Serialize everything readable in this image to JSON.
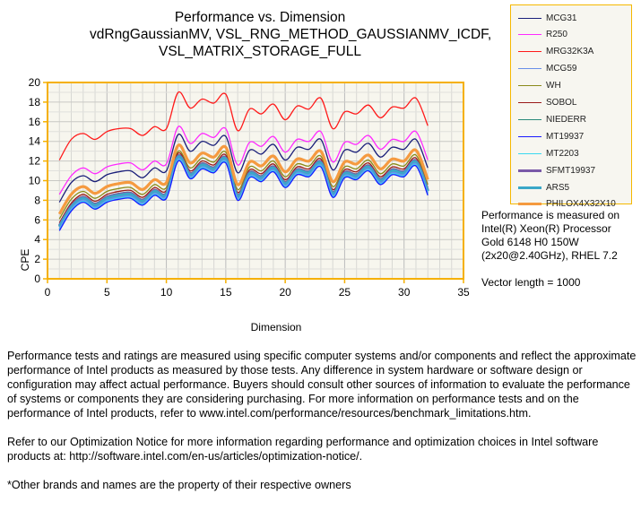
{
  "chart_data": {
    "type": "line",
    "title": [
      "Performance vs. Dimension",
      "vdRngGaussianMV,  VSL_RNG_METHOD_GAUSSIANMV_ICDF,",
      "VSL_MATRIX_STORAGE_FULL"
    ],
    "xlabel": "Dimension",
    "ylabel": "CPE",
    "xlim": [
      0,
      35
    ],
    "ylim": [
      0,
      20
    ],
    "xticks": [
      0,
      5,
      10,
      15,
      20,
      25,
      30,
      35
    ],
    "yticks": [
      0,
      2,
      4,
      6,
      8,
      10,
      12,
      14,
      16,
      18,
      20
    ],
    "grid": true,
    "legend_position": "top-right",
    "x": [
      1,
      2,
      3,
      4,
      5,
      6,
      7,
      8,
      9,
      10,
      11,
      12,
      13,
      14,
      15,
      16,
      17,
      18,
      19,
      20,
      21,
      22,
      23,
      24,
      25,
      26,
      27,
      28,
      29,
      30,
      31,
      32
    ],
    "series": [
      {
        "name": "MCG31",
        "color": "#1a1f7a",
        "width": 1.3,
        "values": [
          7.8,
          9.8,
          10.5,
          9.9,
          10.6,
          10.9,
          11.0,
          10.3,
          11.3,
          11.0,
          14.7,
          13.0,
          14.0,
          13.6,
          14.5,
          10.8,
          13.1,
          12.7,
          13.7,
          12.1,
          13.4,
          13.2,
          14.2,
          11.1,
          13.1,
          12.9,
          13.8,
          12.4,
          13.4,
          13.2,
          14.2,
          11.3
        ]
      },
      {
        "name": "R250",
        "color": "#ff2aff",
        "width": 1.3,
        "values": [
          8.6,
          10.5,
          11.3,
          10.7,
          11.4,
          11.7,
          11.8,
          11.1,
          12.0,
          11.7,
          15.5,
          13.8,
          14.8,
          14.4,
          15.3,
          11.6,
          13.9,
          13.5,
          14.5,
          12.9,
          14.2,
          14.0,
          15.0,
          11.9,
          13.9,
          13.7,
          14.6,
          13.2,
          14.2,
          14.0,
          15.0,
          12.1
        ]
      },
      {
        "name": "MRG32K3A",
        "color": "#ff1a1a",
        "width": 1.3,
        "values": [
          12.1,
          14.2,
          14.8,
          14.2,
          15.0,
          15.3,
          15.3,
          14.6,
          15.5,
          15.3,
          19.0,
          17.4,
          18.3,
          17.9,
          18.8,
          15.1,
          17.3,
          16.8,
          17.8,
          16.2,
          17.6,
          17.3,
          18.4,
          15.3,
          17.0,
          16.8,
          17.7,
          16.4,
          17.5,
          17.4,
          18.4,
          15.6
        ]
      },
      {
        "name": "MCG59",
        "color": "#6a8fe8",
        "width": 1.8,
        "values": [
          5.1,
          7.1,
          8.0,
          7.3,
          8.0,
          8.3,
          8.4,
          7.7,
          8.7,
          8.4,
          12.2,
          10.4,
          11.4,
          11.0,
          12.0,
          8.2,
          10.5,
          10.1,
          11.1,
          9.5,
          10.8,
          10.6,
          11.6,
          8.5,
          10.5,
          10.3,
          11.2,
          9.8,
          10.8,
          10.6,
          11.7,
          8.7
        ]
      },
      {
        "name": "WH",
        "color": "#8a8a1a",
        "width": 1.3,
        "values": [
          6.1,
          8.1,
          8.9,
          8.2,
          8.9,
          9.2,
          9.3,
          8.6,
          9.6,
          9.3,
          13.0,
          11.3,
          12.3,
          11.9,
          12.9,
          9.1,
          11.4,
          11.0,
          12.0,
          10.4,
          11.7,
          11.5,
          12.5,
          9.4,
          11.4,
          11.2,
          12.1,
          10.7,
          11.7,
          11.5,
          12.6,
          9.6
        ]
      },
      {
        "name": "SOBOL",
        "color": "#9a1a1a",
        "width": 1.3,
        "values": [
          5.7,
          7.7,
          8.6,
          7.9,
          8.6,
          8.9,
          9.0,
          8.3,
          9.3,
          9.0,
          12.8,
          11.0,
          12.0,
          11.6,
          12.6,
          8.8,
          11.1,
          10.7,
          11.7,
          10.1,
          11.4,
          11.2,
          12.2,
          9.1,
          11.1,
          10.9,
          11.8,
          10.4,
          11.4,
          11.2,
          12.3,
          9.3
        ]
      },
      {
        "name": "NIEDERR",
        "color": "#2a8a7a",
        "width": 1.3,
        "values": [
          5.5,
          7.5,
          8.4,
          7.7,
          8.4,
          8.7,
          8.8,
          8.1,
          9.1,
          8.8,
          12.6,
          10.8,
          11.8,
          11.4,
          12.4,
          8.6,
          10.9,
          10.5,
          11.5,
          9.9,
          11.2,
          11.0,
          12.0,
          8.9,
          10.9,
          10.7,
          11.6,
          10.2,
          11.2,
          11.0,
          12.1,
          9.1
        ]
      },
      {
        "name": "MT19937",
        "color": "#1a1aff",
        "width": 1.3,
        "values": [
          4.9,
          6.9,
          7.8,
          7.1,
          7.8,
          8.1,
          8.2,
          7.5,
          8.5,
          8.2,
          12.0,
          10.2,
          11.2,
          10.8,
          11.8,
          8.0,
          10.3,
          9.9,
          10.9,
          9.3,
          10.6,
          10.4,
          11.4,
          8.3,
          10.3,
          10.1,
          11.0,
          9.6,
          10.6,
          10.4,
          11.5,
          8.5
        ]
      },
      {
        "name": "MT2203",
        "color": "#3ad8f0",
        "width": 1.3,
        "values": [
          5.0,
          7.0,
          7.9,
          7.2,
          7.9,
          8.2,
          8.3,
          7.6,
          8.6,
          8.3,
          12.1,
          10.3,
          11.3,
          10.9,
          11.9,
          8.1,
          10.4,
          10.0,
          11.0,
          9.4,
          10.7,
          10.5,
          11.5,
          8.4,
          10.4,
          10.2,
          11.1,
          9.7,
          10.7,
          10.5,
          11.6,
          8.6
        ]
      },
      {
        "name": "SFMT19937",
        "color": "#7a5aa8",
        "width": 3.2,
        "values": [
          5.4,
          7.4,
          8.3,
          7.6,
          8.3,
          8.6,
          8.7,
          8.0,
          9.0,
          8.7,
          12.5,
          10.7,
          11.7,
          11.3,
          12.3,
          8.5,
          10.8,
          10.4,
          11.4,
          9.8,
          11.1,
          10.9,
          11.9,
          8.8,
          10.8,
          10.6,
          11.5,
          10.1,
          11.1,
          10.9,
          12.0,
          9.0
        ]
      },
      {
        "name": "ARS5",
        "color": "#3aa8c8",
        "width": 3.2,
        "values": [
          5.3,
          7.3,
          8.2,
          7.5,
          8.2,
          8.5,
          8.6,
          7.9,
          8.9,
          8.6,
          12.4,
          10.6,
          11.6,
          11.2,
          12.2,
          8.4,
          10.7,
          10.3,
          11.3,
          9.7,
          11.0,
          10.8,
          11.8,
          8.7,
          10.7,
          10.5,
          11.4,
          10.0,
          11.0,
          10.8,
          11.9,
          8.9
        ]
      },
      {
        "name": "PHILOX4X32X10",
        "color": "#f59a40",
        "width": 3.2,
        "values": [
          6.6,
          8.6,
          9.4,
          8.7,
          9.4,
          9.7,
          9.8,
          9.1,
          10.1,
          9.8,
          13.6,
          11.8,
          12.8,
          12.4,
          13.4,
          9.6,
          11.9,
          11.5,
          12.5,
          10.9,
          12.2,
          12.0,
          13.0,
          9.9,
          11.9,
          11.7,
          12.6,
          11.2,
          12.2,
          12.0,
          13.1,
          10.1
        ]
      }
    ],
    "annotation": "Performance is measured on\nIntel(R) Xeon(R) Processor\nGold 6148 H0 150W\n(2x20@2.40GHz),  RHEL 7.2\n\nVector length = 1000"
  },
  "footer": [
    "Performance tests and ratings are measured using specific computer systems and/or components and reflect the approximate performance of Intel products as measured by those tests. Any difference in system hardware or software design or configuration may affect actual performance. Buyers should consult other sources of information to evaluate the performance of systems or components they are considering purchasing. For more information on performance tests and on the performance of Intel products, refer to www.intel.com/performance/resources/benchmark_limitations.htm.",
    "Refer to our Optimization Notice for more information regarding performance and optimization choices in Intel software products at: http://software.intel.com/en-us/articles/optimization-notice/.",
    "*Other brands and names are the property of their respective owners"
  ]
}
